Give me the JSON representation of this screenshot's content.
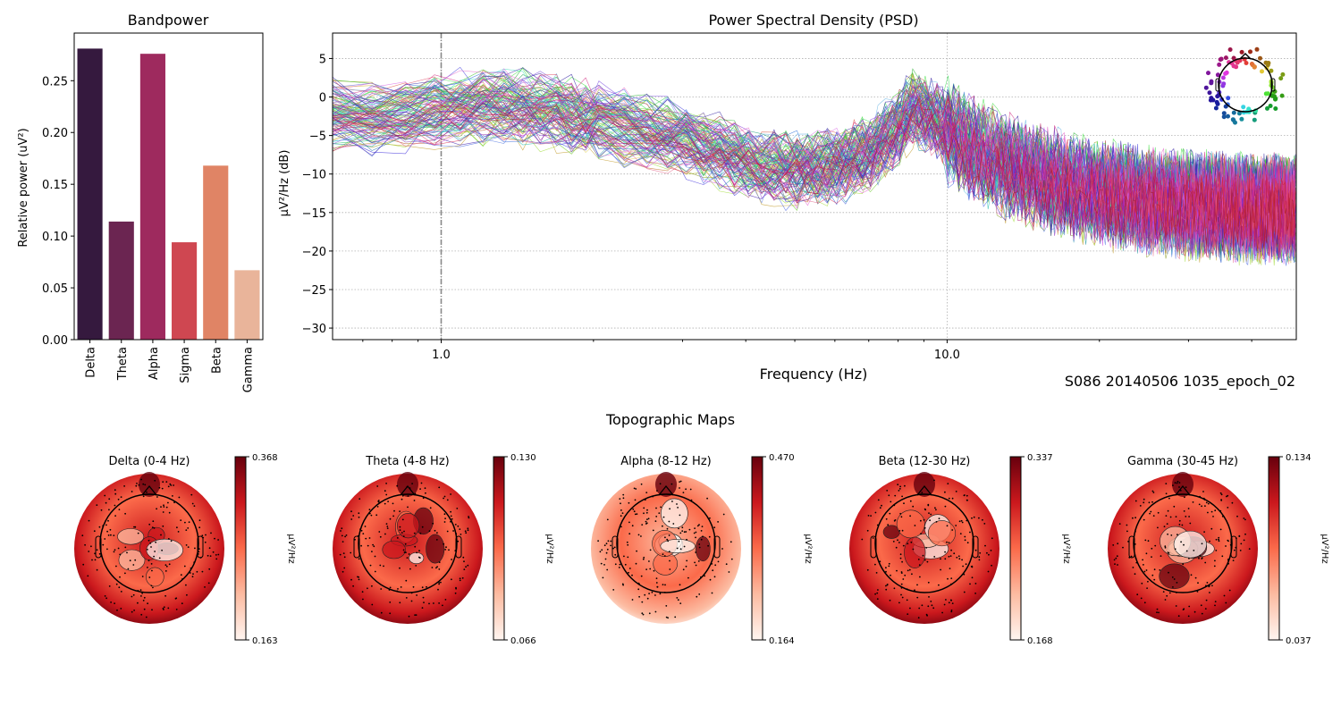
{
  "figure": {
    "recording_label": "S086 20140506 1035_epoch_02",
    "topomaps_title": "Topographic Maps"
  },
  "chart_data": [
    {
      "id": "bandpower",
      "type": "bar",
      "title": "Bandpower",
      "xlabel": "",
      "ylabel": "Relative power (uV²)",
      "categories": [
        "Delta",
        "Theta",
        "Alpha",
        "Sigma",
        "Beta",
        "Gamma"
      ],
      "values": [
        0.281,
        0.114,
        0.276,
        0.094,
        0.168,
        0.067
      ],
      "colors": [
        "#35193e",
        "#6b2551",
        "#9e2a5e",
        "#cf4751",
        "#e08465",
        "#e9b49a"
      ],
      "ylim": [
        0,
        0.296
      ],
      "yticks": [
        0.0,
        0.05,
        0.1,
        0.15,
        0.2,
        0.25
      ],
      "ytick_labels": [
        "0.00",
        "0.05",
        "0.10",
        "0.15",
        "0.20",
        "0.25"
      ],
      "grid": false
    },
    {
      "id": "psd",
      "type": "line",
      "title": "Power Spectral Density (PSD)",
      "xlabel": "Frequency (Hz)",
      "ylabel": "µV²/Hz (dB)",
      "xscale": "log",
      "xlim": [
        0.61,
        49
      ],
      "ylim": [
        -31.5,
        8.3
      ],
      "xticks": [
        1.0,
        10.0
      ],
      "xtick_labels": [
        "1.0",
        "10.0"
      ],
      "yticks": [
        5,
        0,
        -5,
        -10,
        -15,
        -20,
        -25,
        -30
      ],
      "ytick_labels": [
        "5",
        "0",
        "−5",
        "−10",
        "−15",
        "−20",
        "−25",
        "−30"
      ],
      "grid": true,
      "highpass_marker_hz": 1.0,
      "channel_count_approx": 128,
      "mean_profile": {
        "freqs": [
          0.61,
          0.8,
          1.0,
          1.3,
          1.7,
          2.2,
          2.8,
          3.5,
          4.3,
          5.0,
          6.0,
          7.0,
          8.0,
          8.5,
          9.5,
          11,
          13,
          16,
          20,
          25,
          30,
          40,
          49
        ],
        "db": [
          -2.5,
          -2.8,
          -1.5,
          -1.0,
          -2.0,
          -3.5,
          -5.0,
          -7.0,
          -9.0,
          -9.5,
          -9.0,
          -7.5,
          -4.0,
          -1.5,
          -3.0,
          -6.5,
          -9.0,
          -11.0,
          -12.5,
          -13.5,
          -14.0,
          -14.5,
          -14.5
        ]
      },
      "spread_db": 3.0,
      "legend": "sensor-location inset (top-right)"
    }
  ],
  "topomaps": [
    {
      "title": "Delta (0-4 Hz)",
      "vmax": "0.368",
      "vmin": "0.163",
      "unit": "µV²/Hz"
    },
    {
      "title": "Theta (4-8 Hz)",
      "vmax": "0.130",
      "vmin": "0.066",
      "unit": "µV²/Hz"
    },
    {
      "title": "Alpha (8-12 Hz)",
      "vmax": "0.470",
      "vmin": "0.164",
      "unit": "µV²/Hz"
    },
    {
      "title": "Beta (12-30 Hz)",
      "vmax": "0.337",
      "vmin": "0.168",
      "unit": "µV²/Hz"
    },
    {
      "title": "Gamma (30-45 Hz)",
      "vmax": "0.134",
      "vmin": "0.037",
      "unit": "µV²/Hz"
    }
  ],
  "colormap": {
    "name": "Reds",
    "stops": [
      "#fff5f0",
      "#fcbba1",
      "#fb6a4a",
      "#cb181d",
      "#67000d"
    ]
  }
}
